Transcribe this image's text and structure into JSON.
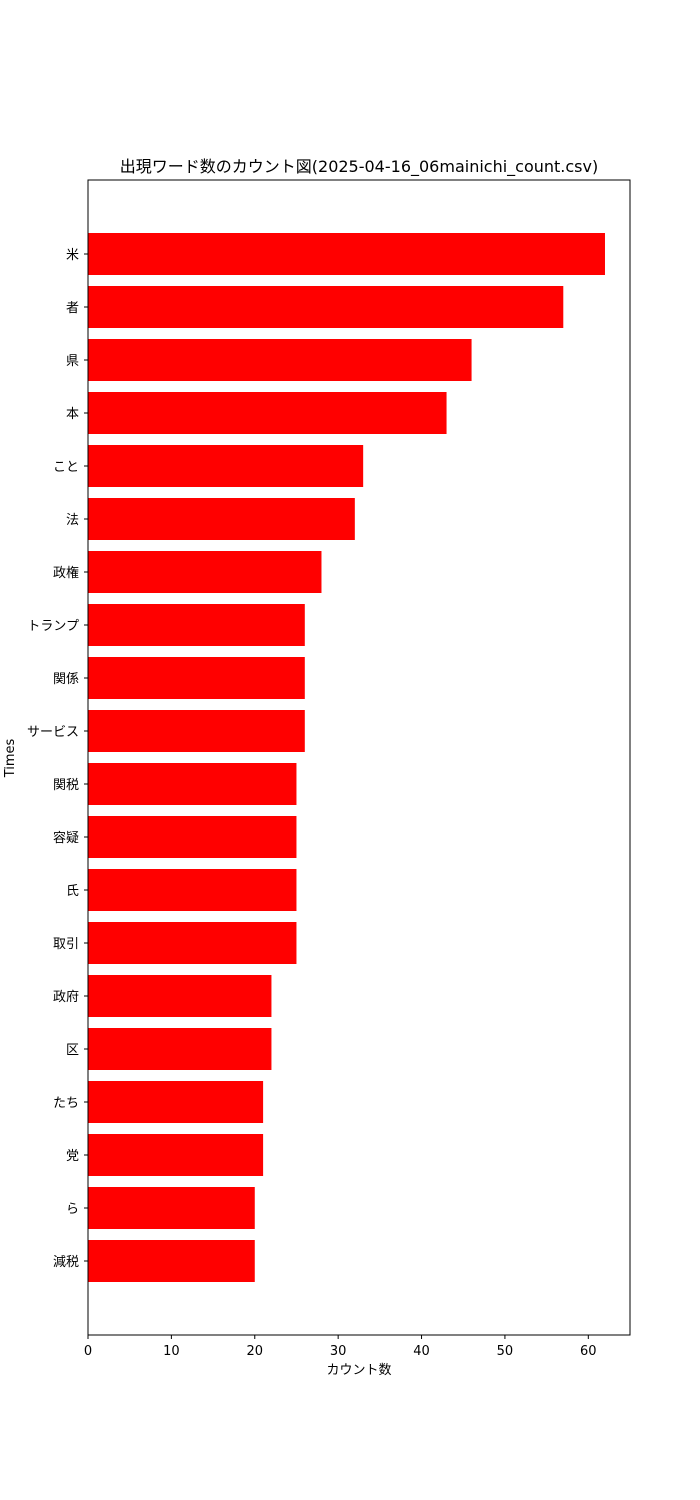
{
  "chart_data": {
    "type": "bar",
    "orientation": "horizontal",
    "title": "出現ワード数のカウント図(2025-04-16_06mainichi_count.csv)",
    "xlabel": "カウント数",
    "ylabel": "Times",
    "xlim": [
      0,
      65
    ],
    "xticks": [
      0,
      10,
      20,
      30,
      40,
      50,
      60
    ],
    "grid": false,
    "bar_color": "#ff0000",
    "categories": [
      "米",
      "者",
      "県",
      "本",
      "こと",
      "法",
      "政権",
      "トランプ",
      "関係",
      "サービス",
      "関税",
      "容疑",
      "氏",
      "取引",
      "政府",
      "区",
      "たち",
      "党",
      "ら",
      "減税"
    ],
    "values": [
      62,
      57,
      46,
      43,
      33,
      32,
      28,
      26,
      26,
      26,
      25,
      25,
      25,
      25,
      22,
      22,
      21,
      21,
      20,
      20
    ]
  }
}
